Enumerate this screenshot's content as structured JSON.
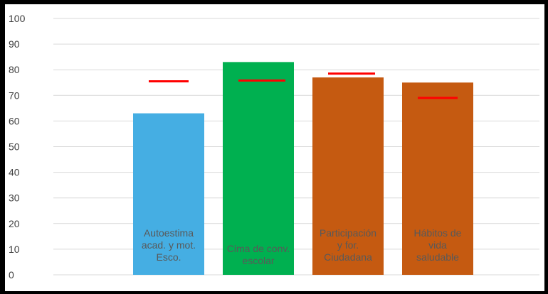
{
  "chart_data": {
    "type": "bar",
    "title": "",
    "xlabel": "",
    "ylabel": "",
    "ylim": [
      0,
      100
    ],
    "ytick_step": 10,
    "grid": true,
    "legend": "none",
    "categories": [
      [
        "Autoestima",
        "acad. y mot.",
        "Esco."
      ],
      [
        "Cima de conv.",
        "escolar"
      ],
      [
        "Participación",
        "y for.",
        "Ciudadana"
      ],
      [
        "Hábitos de",
        "vida",
        "saludable"
      ]
    ],
    "values": [
      63,
      83,
      77,
      75
    ],
    "bar_colors": [
      "#45aee3",
      "#00b050",
      "#c55a11",
      "#c55a11"
    ],
    "reference_markers": [
      75.5,
      75.8,
      78.5,
      69
    ],
    "reference_color": "#ff0000",
    "grid_color": "#d9d9d9"
  }
}
